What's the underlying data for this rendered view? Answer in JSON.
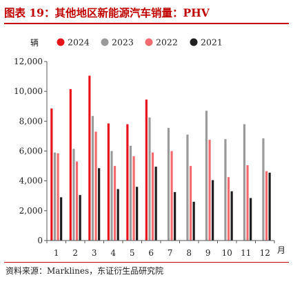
{
  "title": "图表 19：其他地区新能源汽车销量：PHV",
  "source": "资料来源：Marklines，东证衍生品研究院",
  "chart_data": {
    "type": "bar",
    "ylabel": "辆",
    "xlabel": "月",
    "ylim": [
      0,
      12000
    ],
    "yticks": [
      "0",
      "2,000",
      "4,000",
      "6,000",
      "8,000",
      "10,000",
      "12,000"
    ],
    "categories": [
      "1",
      "2",
      "3",
      "4",
      "5",
      "6",
      "7",
      "8",
      "9",
      "10",
      "11",
      "12"
    ],
    "grid": false,
    "legend_position": "top",
    "series": [
      {
        "name": "2024",
        "color": "#e8141c",
        "values": [
          8850,
          10150,
          11050,
          7850,
          7800,
          9450,
          null,
          null,
          null,
          null,
          null,
          null
        ]
      },
      {
        "name": "2023",
        "color": "#9a9a9a",
        "values": [
          5900,
          6150,
          8350,
          6000,
          6350,
          8250,
          7550,
          7100,
          8700,
          6800,
          7800,
          6850
        ]
      },
      {
        "name": "2022",
        "color": "#f36b6f",
        "values": [
          5850,
          5300,
          7300,
          5000,
          5650,
          5900,
          6000,
          5000,
          6750,
          4250,
          5050,
          4650
        ]
      },
      {
        "name": "2021",
        "color": "#1e1e1e",
        "values": [
          2900,
          3050,
          4850,
          3450,
          3600,
          4950,
          3250,
          2600,
          4050,
          3300,
          2850,
          4550
        ]
      }
    ]
  }
}
